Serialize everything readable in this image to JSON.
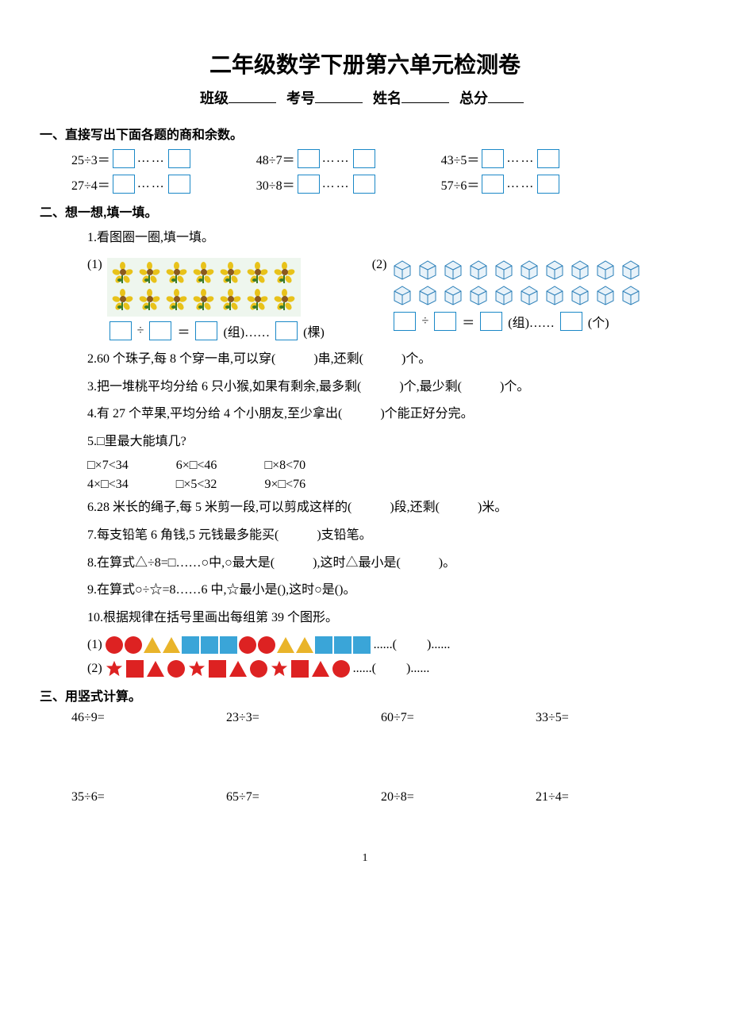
{
  "title": "二年级数学下册第六单元检测卷",
  "info_labels": {
    "class": "班级",
    "exam_no": "考号",
    "name": "姓名",
    "total": "总分"
  },
  "sections": {
    "s1": "一、直接写出下面各题的商和余数。",
    "s2": "二、想一想,填一填。",
    "s3": "三、用竖式计算。"
  },
  "q1_items": [
    "25÷3＝",
    "48÷7＝",
    "43÷5＝",
    "27÷4＝",
    "30÷8＝",
    "57÷6＝"
  ],
  "dots": "……",
  "s2_q1": "1.看图圈一圈,填一填。",
  "fig1_prefix": "(1)",
  "fig2_prefix": "(2)",
  "fig1_eq_tail_group": "(组)……",
  "fig1_eq_tail_unit": "(棵)",
  "fig2_eq_tail_group": "(组)……",
  "fig2_eq_tail_unit": "(个)",
  "div_sign": "÷",
  "eq_sign": "＝",
  "s2_items": {
    "q2": "2.60 个珠子,每 8 个穿一串,可以穿(　　　)串,还剩(　　　)个。",
    "q3": "3.把一堆桃平均分给 6 只小猴,如果有剩余,最多剩(　　　)个,最少剩(　　　)个。",
    "q4": "4.有 27 个苹果,平均分给 4 个小朋友,至少拿出(　　　)个能正好分完。",
    "q5": "5.□里最大能填几?",
    "q5r1": [
      "□×7<34",
      "6×□<46",
      "□×8<70"
    ],
    "q5r2": [
      "4×□<34",
      "□×5<32",
      "9×□<76"
    ],
    "q6": "6.28 米长的绳子,每 5 米剪一段,可以剪成这样的(　　　)段,还剩(　　　)米。",
    "q7": "7.每支铅笔 6 角钱,5 元钱最多能买(　　　)支铅笔。",
    "q8": "8.在算式△÷8=□……○中,○最大是(　　　),这时△最小是(　　　)。",
    "q9": "9.在算式○÷☆=8……6 中,☆最小是(),这时○是()。",
    "q10": "10.根据规律在括号里画出每组第 39 个图形。"
  },
  "pattern1_prefix": "(1)",
  "pattern2_prefix": "(2)",
  "pattern_tail_dots": "......(",
  "pattern_tail_close": ")......",
  "s3_items_r1": [
    "46÷9=",
    "23÷3=",
    "60÷7=",
    "33÷5="
  ],
  "s3_items_r2": [
    "35÷6=",
    "65÷7=",
    "20÷8=",
    "21÷4="
  ],
  "page_number": "1",
  "colors": {
    "box_border": "#1b88c7",
    "cube_stroke": "#2a7fb8",
    "red": "#d22222",
    "yellow": "#e9b42a",
    "blue": "#3aa5d8"
  },
  "pattern1_seq": [
    "circle-red",
    "circle-red",
    "tri-yellow",
    "tri-yellow",
    "sq-blue",
    "sq-blue",
    "sq-blue",
    "circle-red",
    "circle-red",
    "tri-yellow",
    "tri-yellow",
    "sq-blue",
    "sq-blue",
    "sq-blue"
  ],
  "pattern2_seq": [
    "star-red",
    "sq-red",
    "tri-red",
    "circle-red",
    "star-red",
    "sq-red",
    "tri-red",
    "circle-red",
    "star-red",
    "sq-red",
    "tri-red",
    "circle-red"
  ]
}
